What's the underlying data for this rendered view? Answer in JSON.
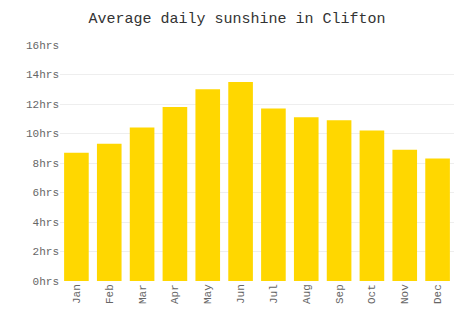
{
  "chart_data": {
    "type": "bar",
    "title": "Average daily sunshine in Clifton",
    "categories": [
      "Jan",
      "Feb",
      "Mar",
      "Apr",
      "May",
      "Jun",
      "Jul",
      "Aug",
      "Sep",
      "Oct",
      "Nov",
      "Dec"
    ],
    "values": [
      8.7,
      9.3,
      10.4,
      11.8,
      13.0,
      13.5,
      11.7,
      11.1,
      10.9,
      10.2,
      8.9,
      8.3
    ],
    "color": "#FFD700",
    "ylim": [
      0,
      16
    ],
    "yticks": [
      {
        "value": 0,
        "label": "0hrs"
      },
      {
        "value": 2,
        "label": "2hrs"
      },
      {
        "value": 4,
        "label": "4hrs"
      },
      {
        "value": 6,
        "label": "6hrs"
      },
      {
        "value": 8,
        "label": "8hrs"
      },
      {
        "value": 10,
        "label": "10hrs"
      },
      {
        "value": 12,
        "label": "12hrs"
      },
      {
        "value": 14,
        "label": "14hrs"
      },
      {
        "value": 16,
        "label": "16hrs"
      }
    ],
    "grid": true
  }
}
